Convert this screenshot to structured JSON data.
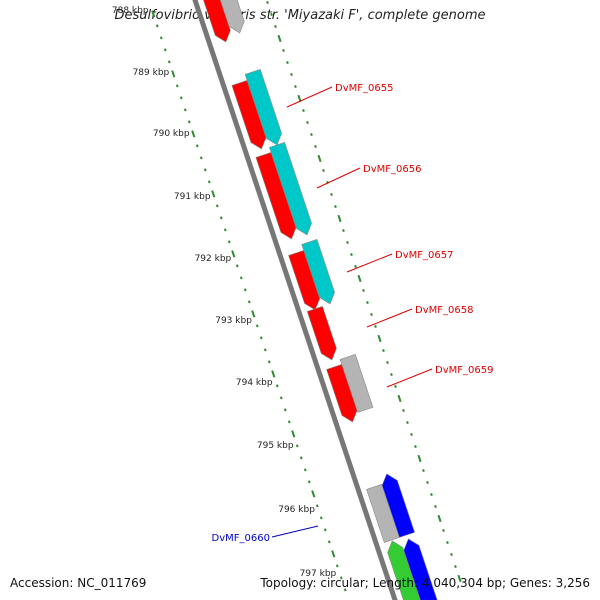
{
  "title": "Desulfovibrio vulgaris str. 'Miyazaki F', complete genome",
  "footer": {
    "accession": "Accession: NC_011769",
    "stats": "Topology: circular; Length: 4,040,304 bp; Genes: 3,256"
  },
  "colors": {
    "backbone": "#777777",
    "ruler": "#2e8b2e",
    "red": "#ff0000",
    "cyan": "#00c8c8",
    "gray": "#b4b4b4",
    "blue": "#0000ff",
    "green": "#33cc33",
    "label_red": "#dd0000",
    "label_blue": "#0000cc"
  },
  "kbp_labels": [
    "788 kbp",
    "789 kbp",
    "790 kbp",
    "791 kbp",
    "792 kbp",
    "793 kbp",
    "794 kbp",
    "795 kbp",
    "796 kbp",
    "797 kbp"
  ],
  "gene_labels": [
    {
      "text": "DvMF_0655",
      "color": "label_red"
    },
    {
      "text": "DvMF_0656",
      "color": "label_red"
    },
    {
      "text": "DvMF_0657",
      "color": "label_red"
    },
    {
      "text": "DvMF_0658",
      "color": "label_red"
    },
    {
      "text": "DvMF_0659",
      "color": "label_red"
    },
    {
      "text": "DvMF_0660",
      "color": "label_blue"
    }
  ]
}
